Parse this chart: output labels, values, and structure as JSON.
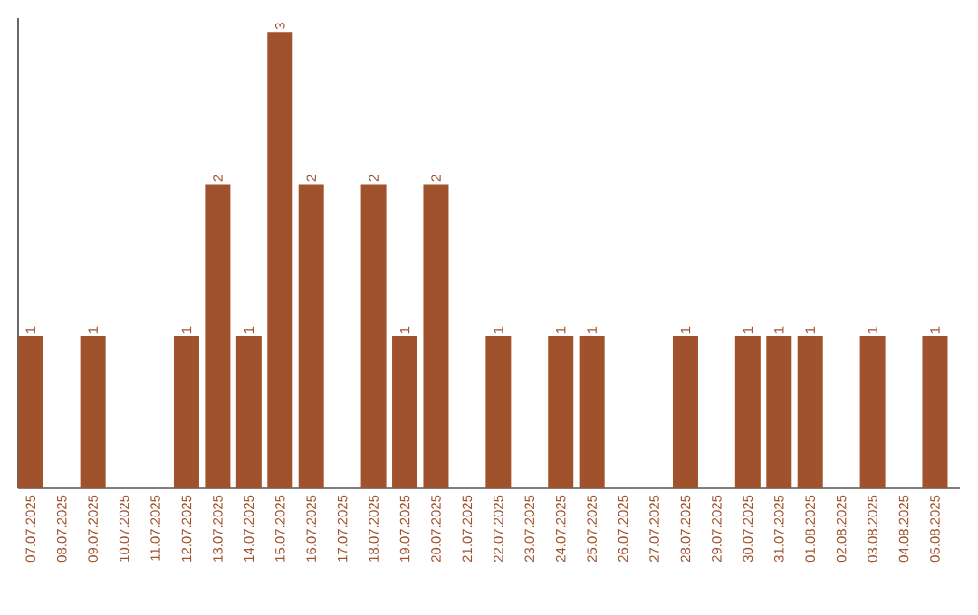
{
  "chart_data": {
    "type": "bar",
    "color": "#a0522d",
    "categories": [
      "07.07.2025",
      "08.07.2025",
      "09.07.2025",
      "10.07.2025",
      "11.07.2025",
      "12.07.2025",
      "13.07.2025",
      "14.07.2025",
      "15.07.2025",
      "16.07.2025",
      "17.07.2025",
      "18.07.2025",
      "19.07.2025",
      "20.07.2025",
      "21.07.2025",
      "22.07.2025",
      "23.07.2025",
      "24.07.2025",
      "25.07.2025",
      "26.07.2025",
      "27.07.2025",
      "28.07.2025",
      "29.07.2025",
      "30.07.2025",
      "31.07.2025",
      "01.08.2025",
      "02.08.2025",
      "03.08.2025",
      "04.08.2025",
      "05.08.2025"
    ],
    "values": [
      1,
      0,
      1,
      0,
      0,
      1,
      2,
      1,
      3,
      2,
      0,
      2,
      1,
      2,
      0,
      1,
      0,
      1,
      1,
      0,
      0,
      1,
      0,
      1,
      1,
      1,
      0,
      1,
      0,
      1
    ],
    "value_labels": [
      "1",
      null,
      "1",
      null,
      null,
      "1",
      "2",
      "1",
      "3",
      "2",
      null,
      "2",
      "1",
      "2",
      null,
      "1",
      null,
      "1",
      "1",
      null,
      null,
      "1",
      null,
      "1",
      "1",
      "1",
      null,
      "1",
      null,
      "1"
    ],
    "data_labels": false
  }
}
